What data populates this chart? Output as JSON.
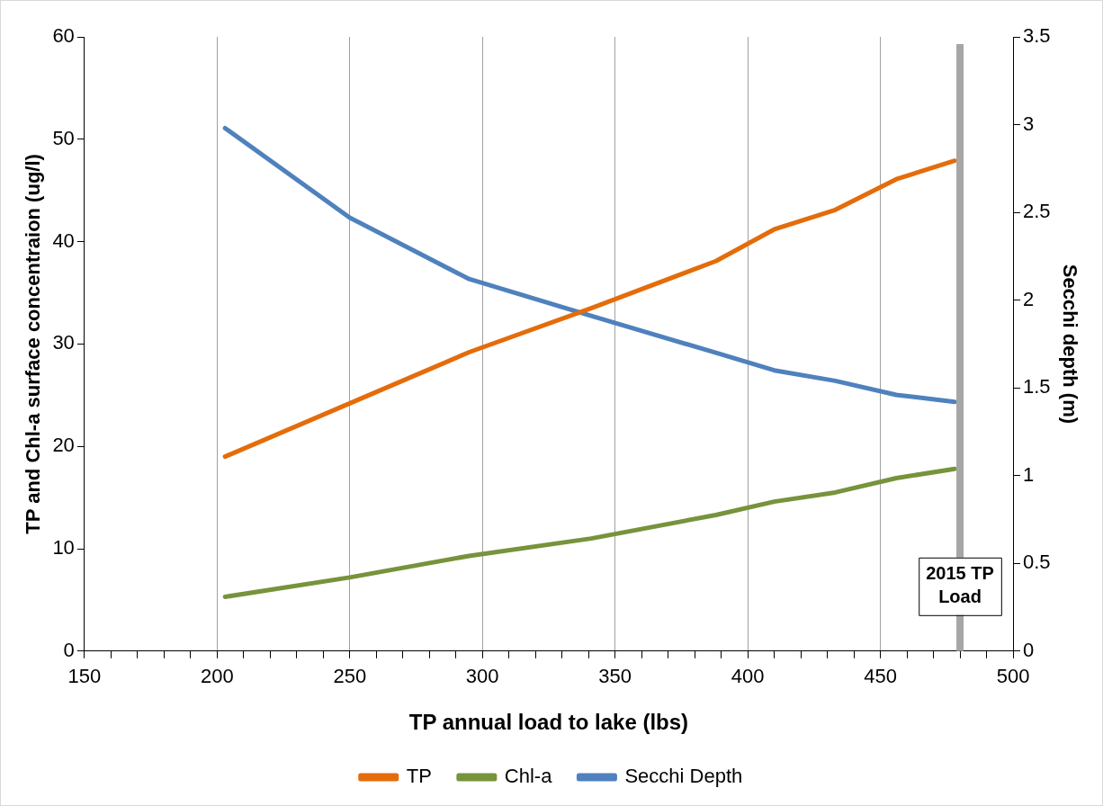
{
  "chart_data": {
    "type": "line",
    "xlabel": "TP annual load to lake (lbs)",
    "ylabel": "TP and Chl-a surface concentraion (ug/l)",
    "y2label": "Secchi depth (m)",
    "x": [
      203,
      250,
      295,
      341,
      388,
      410,
      433,
      456,
      478
    ],
    "series": [
      {
        "name": "TP",
        "color": "#e46c0a",
        "values": [
          19,
          24.2,
          29.2,
          33.5,
          38.1,
          41.2,
          43.1,
          46.1,
          47.9
        ]
      },
      {
        "name": "Chl-a",
        "color": "#77933c",
        "values": [
          5.3,
          7.2,
          9.3,
          11,
          13.3,
          14.6,
          15.5,
          16.9,
          17.8
        ]
      },
      {
        "name": "Secchi Depth",
        "color": "#4f81bd",
        "axis": "y2",
        "values": [
          2.98,
          2.47,
          2.12,
          1.91,
          1.7,
          1.6,
          1.54,
          1.46,
          1.42
        ]
      }
    ],
    "xlim": [
      150,
      500
    ],
    "xticks": [
      150,
      {
        "value": 160,
        "label": null
      },
      {
        "value": 170,
        "label": null
      },
      {
        "value": 180,
        "label": null
      },
      {
        "value": 190,
        "label": null
      },
      200,
      {
        "value": 210,
        "label": null
      },
      {
        "value": 220,
        "label": null
      },
      {
        "value": 230,
        "label": null
      },
      {
        "value": 240,
        "label": null
      },
      250,
      {
        "value": 260,
        "label": null
      },
      {
        "value": 270,
        "label": null
      },
      {
        "value": 280,
        "label": null
      },
      {
        "value": 290,
        "label": null
      },
      300,
      {
        "value": 310,
        "label": null
      },
      {
        "value": 320,
        "label": null
      },
      {
        "value": 330,
        "label": null
      },
      {
        "value": 340,
        "label": null
      },
      350,
      {
        "value": 360,
        "label": null
      },
      {
        "value": 370,
        "label": null
      },
      {
        "value": 380,
        "label": null
      },
      {
        "value": 390,
        "label": null
      },
      400,
      {
        "value": 410,
        "label": null
      },
      {
        "value": 420,
        "label": null
      },
      {
        "value": 430,
        "label": null
      },
      {
        "value": 440,
        "label": null
      },
      450,
      {
        "value": 460,
        "label": null
      },
      {
        "value": 470,
        "label": null
      },
      {
        "value": 480,
        "label": null
      },
      {
        "value": 490,
        "label": null
      },
      500
    ],
    "ylim": [
      0,
      60
    ],
    "yticks": [
      0,
      10,
      20,
      30,
      40,
      50,
      60
    ],
    "y2lim": [
      0,
      3.5
    ],
    "y2ticks": [
      0,
      0.5,
      1,
      1.5,
      2,
      2.5,
      3,
      3.5
    ],
    "ref_lines": [
      {
        "axis": "x",
        "value": 480,
        "label": "2015 TP Load",
        "color": "#a6a6a6"
      }
    ],
    "grid": "x",
    "legend": "bottom",
    "marker": "none",
    "line_style": "solid"
  }
}
